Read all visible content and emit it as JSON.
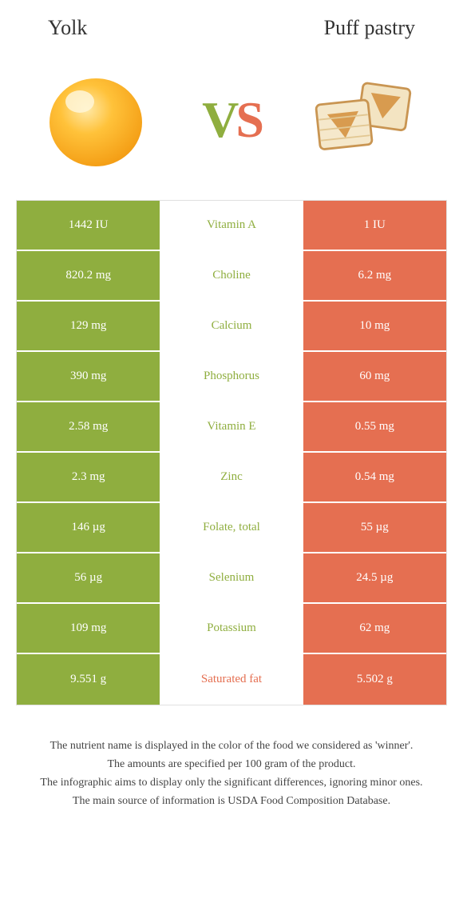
{
  "header": {
    "left_title": "Yolk",
    "right_title": "Puff pastry"
  },
  "vs": {
    "v": "V",
    "s": "S"
  },
  "colors": {
    "green": "#8fae3f",
    "orange": "#e56f51"
  },
  "rows": [
    {
      "left": "1442 IU",
      "name": "Vitamin A",
      "winner": "green",
      "right": "1 IU"
    },
    {
      "left": "820.2 mg",
      "name": "Choline",
      "winner": "green",
      "right": "6.2 mg"
    },
    {
      "left": "129 mg",
      "name": "Calcium",
      "winner": "green",
      "right": "10 mg"
    },
    {
      "left": "390 mg",
      "name": "Phosphorus",
      "winner": "green",
      "right": "60 mg"
    },
    {
      "left": "2.58 mg",
      "name": "Vitamin E",
      "winner": "green",
      "right": "0.55 mg"
    },
    {
      "left": "2.3 mg",
      "name": "Zinc",
      "winner": "green",
      "right": "0.54 mg"
    },
    {
      "left": "146 µg",
      "name": "Folate, total",
      "winner": "green",
      "right": "55 µg"
    },
    {
      "left": "56 µg",
      "name": "Selenium",
      "winner": "green",
      "right": "24.5 µg"
    },
    {
      "left": "109 mg",
      "name": "Potassium",
      "winner": "green",
      "right": "62 mg"
    },
    {
      "left": "9.551 g",
      "name": "Saturated fat",
      "winner": "orange",
      "right": "5.502 g"
    }
  ],
  "footer": {
    "l1": "The nutrient name is displayed in the color of the food we considered as 'winner'.",
    "l2": "The amounts are specified per 100 gram of the product.",
    "l3": "The infographic aims to display only the significant differences, ignoring minor ones.",
    "l4": "The main source of information is USDA Food Composition Database."
  }
}
